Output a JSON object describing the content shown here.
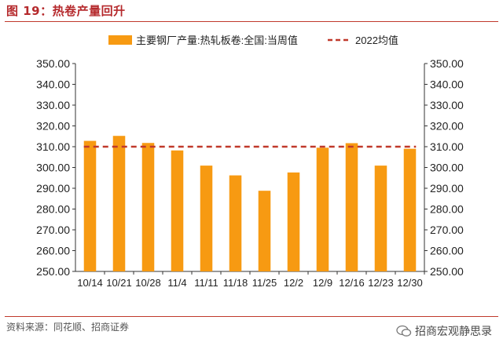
{
  "figure": {
    "title": "图 19：热卷产量回升",
    "source": "资料来源：同花顺、招商证券",
    "watermark": "招商宏观静思录"
  },
  "chart_data": {
    "type": "bar",
    "categories": [
      "10/14",
      "10/21",
      "10/28",
      "11/4",
      "11/11",
      "11/18",
      "11/25",
      "12/2",
      "12/9",
      "12/16",
      "12/23",
      "12/30"
    ],
    "series": [
      {
        "name": "主要钢厂产量:热轧板卷:全国:当周值",
        "type": "bar",
        "color": "#f79a12",
        "values": [
          312.8,
          315.2,
          311.8,
          308.2,
          300.9,
          296.2,
          288.8,
          297.6,
          309.5,
          311.7,
          300.9,
          309.0
        ]
      },
      {
        "name": "2022均值",
        "type": "line",
        "style": "dashed",
        "color": "#c0392b",
        "value": 310.0
      }
    ],
    "ylim": [
      250,
      350
    ],
    "yticks": [
      "250.00",
      "260.00",
      "270.00",
      "280.00",
      "290.00",
      "300.00",
      "310.00",
      "320.00",
      "330.00",
      "340.00",
      "350.00"
    ],
    "secondary_axis": true,
    "legend": "top",
    "grid": false
  }
}
